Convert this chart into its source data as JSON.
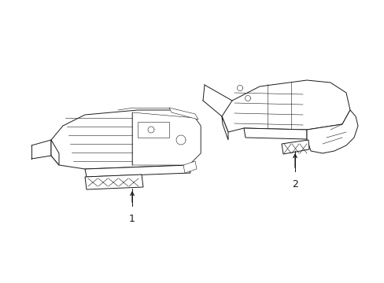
{
  "bg_color": "#ffffff",
  "line_color": "#1a1a1a",
  "line_width": 0.7,
  "thin_lw": 0.4,
  "label1": "1",
  "label2": "2",
  "figsize": [
    4.89,
    3.6
  ],
  "dpi": 100
}
